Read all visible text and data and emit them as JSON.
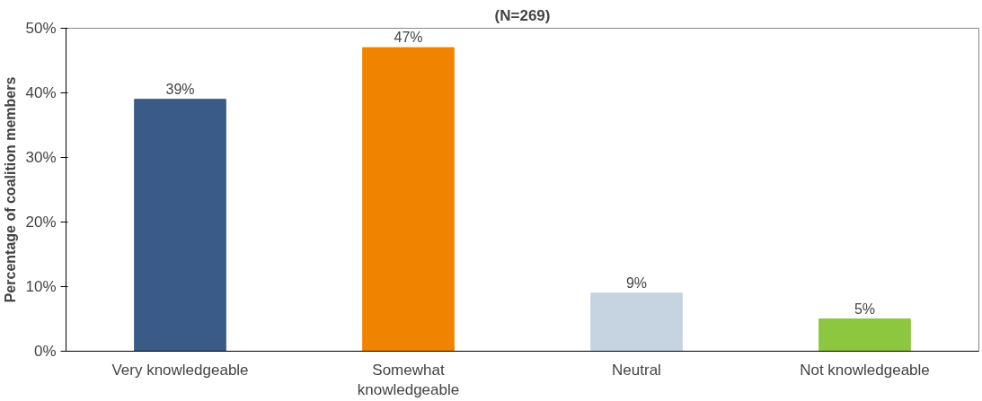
{
  "chart_data": {
    "type": "bar",
    "title": "(N=269)",
    "ylabel": "Percentage of coalition members",
    "categories": [
      "Very knowledgeable",
      "Somewhat knowledgeable",
      "Neutral",
      "Not knowledgeable"
    ],
    "values": [
      39,
      47,
      9,
      5
    ],
    "colors": [
      "#3a5a87",
      "#f08300",
      "#c5d4e0",
      "#8dc63f"
    ],
    "value_labels": [
      "39%",
      "47%",
      "9%",
      "5%"
    ],
    "ylim": [
      0,
      50
    ],
    "yticks": [
      {
        "value": 0,
        "label": "0%"
      },
      {
        "value": 10,
        "label": "10%"
      },
      {
        "value": 20,
        "label": "20%"
      },
      {
        "value": 30,
        "label": "30%"
      },
      {
        "value": 40,
        "label": "40%"
      },
      {
        "value": 50,
        "label": "50%"
      }
    ],
    "grid": false
  }
}
